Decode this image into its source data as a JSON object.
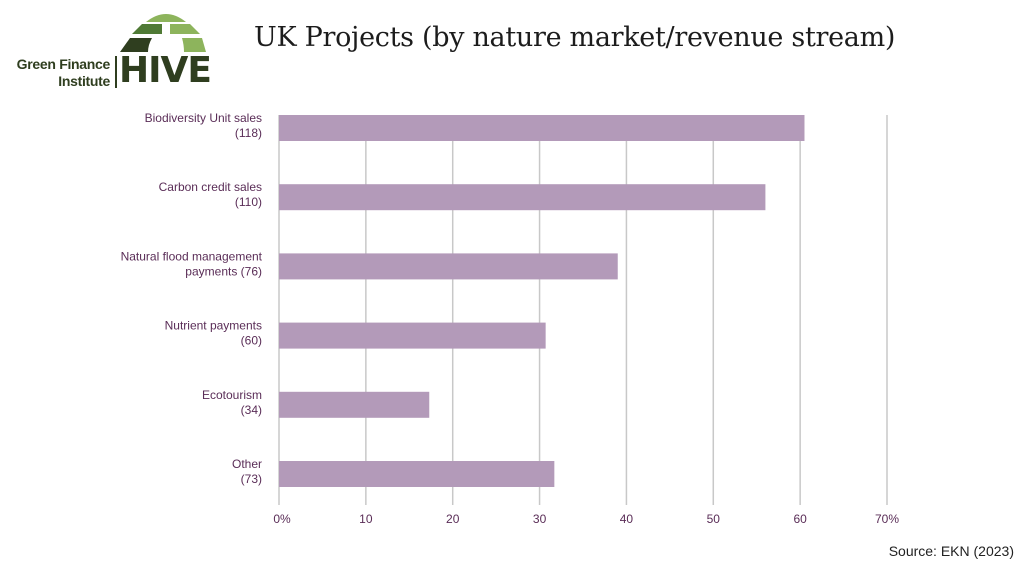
{
  "logo": {
    "line1": "Green Finance",
    "line2": "Institute",
    "wordmark": "HIVE",
    "colors": {
      "dark": "#2f3e1f",
      "mid": "#4f7a35",
      "light": "#8db45c"
    }
  },
  "title": "UK Projects (by nature market/revenue stream)",
  "source": "Source: EKN (2023)",
  "chart_data": {
    "type": "bar",
    "orientation": "horizontal",
    "title": "UK Projects (by nature market/revenue stream)",
    "categories": [
      [
        "Biodiversity Unit sales",
        "(118)"
      ],
      [
        "Carbon credit sales",
        "(110)"
      ],
      [
        "Natural flood management",
        "payments (76)"
      ],
      [
        "Nutrient payments",
        "(60)"
      ],
      [
        "Ecotourism",
        "(34)"
      ],
      [
        "Other",
        "(73)"
      ]
    ],
    "values": [
      60.5,
      56,
      39,
      30.7,
      17.3,
      31.7
    ],
    "xlim": [
      0,
      70
    ],
    "ticks": [
      "0%",
      "10",
      "20",
      "30",
      "40",
      "50",
      "60",
      "70%"
    ],
    "tick_values": [
      0,
      10,
      20,
      30,
      40,
      50,
      60,
      70
    ],
    "bar_color": "#b39ab9",
    "grid_color": "#c8c8c8",
    "label_color": "#5a2d57",
    "grid": true
  }
}
